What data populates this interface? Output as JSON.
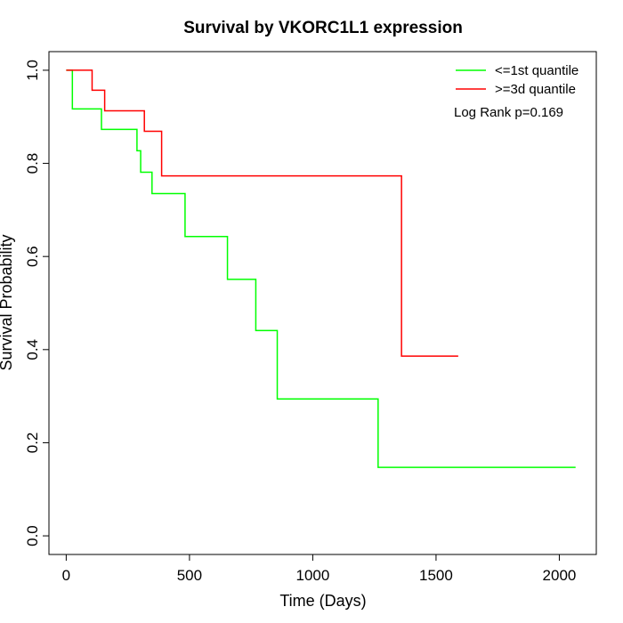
{
  "chart_data": {
    "type": "line",
    "subtype": "kaplan-meier-step",
    "title": "Survival by VKORC1L1 expression",
    "xlabel": "Time (Days)",
    "ylabel": "Survival Probability",
    "xlim": [
      -70,
      2150
    ],
    "ylim": [
      -0.04,
      1.04
    ],
    "xticks": [
      0,
      500,
      1000,
      1500,
      2000
    ],
    "yticks": [
      0.0,
      0.2,
      0.4,
      0.6,
      0.8,
      1.0
    ],
    "xtick_labels": [
      "0",
      "500",
      "1000",
      "1500",
      "2000"
    ],
    "ytick_labels": [
      "0.0",
      "0.2",
      "0.4",
      "0.6",
      "0.8",
      "1.0"
    ],
    "grid": false,
    "legend_position": "top-right",
    "annotation": "Log Rank p=0.169",
    "series": [
      {
        "name": "<=1st quantile",
        "color": "#00ff00",
        "x": [
          0,
          25,
          25,
          143,
          287,
          302,
          348,
          482,
          654,
          769,
          856,
          1265,
          2066
        ],
        "y": [
          1.0,
          1.0,
          0.917,
          0.873,
          0.827,
          0.781,
          0.735,
          0.643,
          0.551,
          0.441,
          0.294,
          0.147,
          0.147
        ]
      },
      {
        "name": ">=3d quantile",
        "color": "#ff0000",
        "x": [
          0,
          105,
          156,
          317,
          387,
          1360,
          1590
        ],
        "y": [
          1.0,
          0.957,
          0.913,
          0.869,
          0.773,
          0.386,
          0.386
        ]
      }
    ]
  }
}
